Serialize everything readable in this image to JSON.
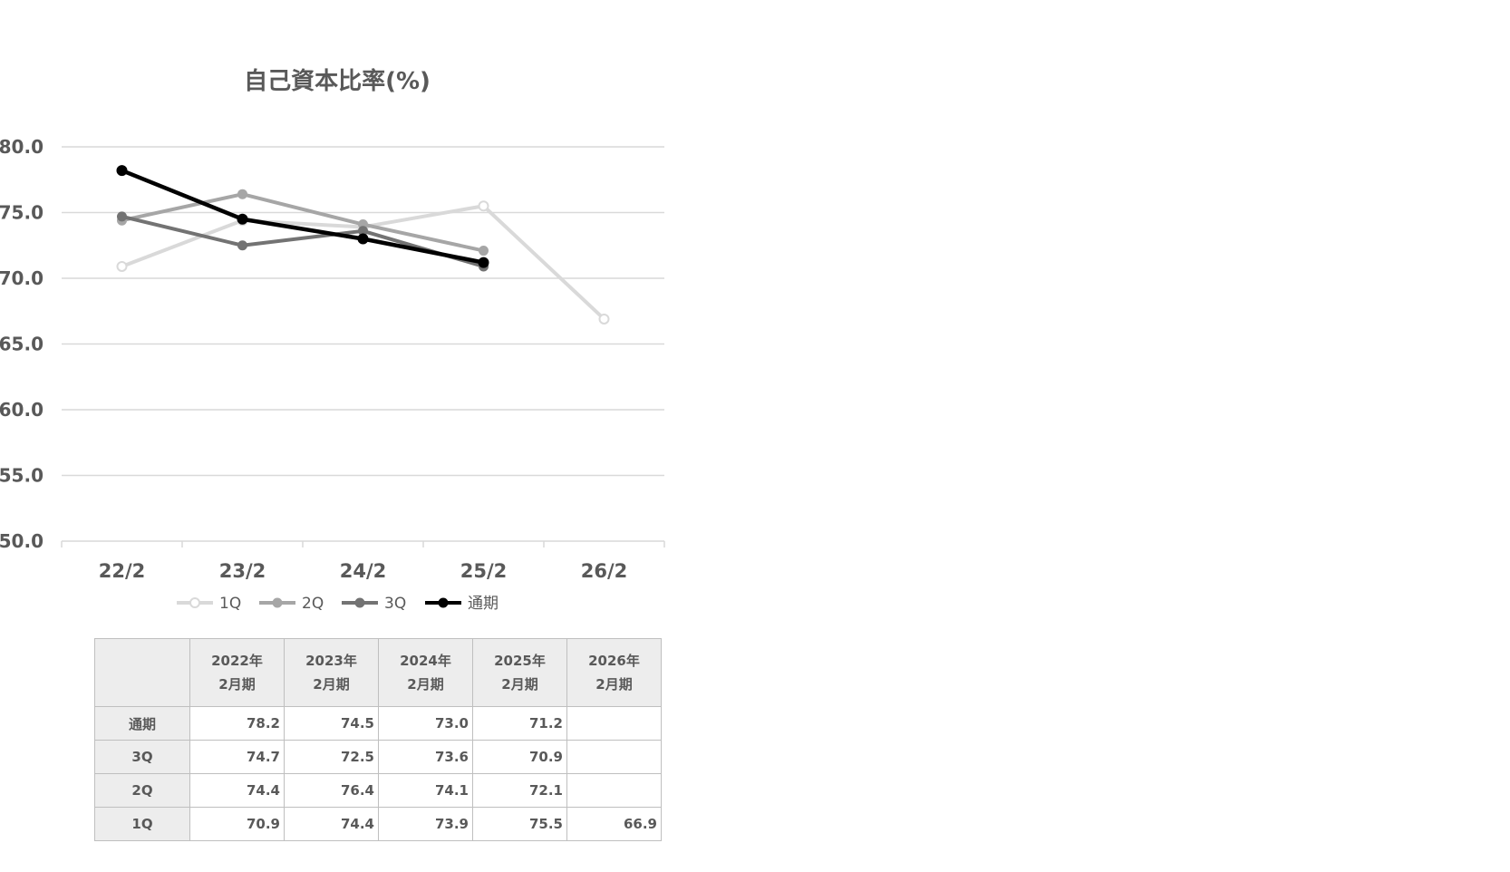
{
  "chart_data": {
    "type": "line",
    "title": "自己資本比率(%)",
    "xlabel": "",
    "ylabel": "",
    "categories": [
      "22/2",
      "23/2",
      "24/2",
      "25/2",
      "26/2"
    ],
    "ylim": [
      50.0,
      80.0
    ],
    "y_ticks": [
      "80.0",
      "75.0",
      "70.0",
      "65.0",
      "60.0",
      "55.0",
      "50.0"
    ],
    "y_tick_values": [
      80,
      75,
      70,
      65,
      60,
      55,
      50
    ],
    "grid": true,
    "legend_position": "bottom",
    "series": [
      {
        "name": "1Q",
        "key": "q1",
        "values": [
          70.9,
          74.4,
          73.9,
          75.5,
          66.9
        ],
        "color": "#d9d9d9",
        "marker": "hollow"
      },
      {
        "name": "2Q",
        "key": "q2",
        "values": [
          74.4,
          76.4,
          74.1,
          72.1,
          null
        ],
        "color": "#a6a6a6",
        "marker": "filled"
      },
      {
        "name": "3Q",
        "key": "q3",
        "values": [
          74.7,
          72.5,
          73.6,
          70.9,
          null
        ],
        "color": "#737373",
        "marker": "filled"
      },
      {
        "name": "通期",
        "key": "full",
        "values": [
          78.2,
          74.5,
          73.0,
          71.2,
          null
        ],
        "color": "#000000",
        "marker": "filled"
      }
    ]
  },
  "table": {
    "headers": [
      {
        "line1": "2022年",
        "line2": "2月期"
      },
      {
        "line1": "2023年",
        "line2": "2月期"
      },
      {
        "line1": "2024年",
        "line2": "2月期"
      },
      {
        "line1": "2025年",
        "line2": "2月期"
      },
      {
        "line1": "2026年",
        "line2": "2月期"
      }
    ],
    "rows": [
      {
        "label": "通期",
        "values": [
          "78.2",
          "74.5",
          "73.0",
          "71.2",
          ""
        ]
      },
      {
        "label": "3Q",
        "values": [
          "74.7",
          "72.5",
          "73.6",
          "70.9",
          ""
        ]
      },
      {
        "label": "2Q",
        "values": [
          "74.4",
          "76.4",
          "74.1",
          "72.1",
          ""
        ]
      },
      {
        "label": "1Q",
        "values": [
          "70.9",
          "74.4",
          "73.9",
          "75.5",
          "66.9"
        ]
      }
    ]
  }
}
